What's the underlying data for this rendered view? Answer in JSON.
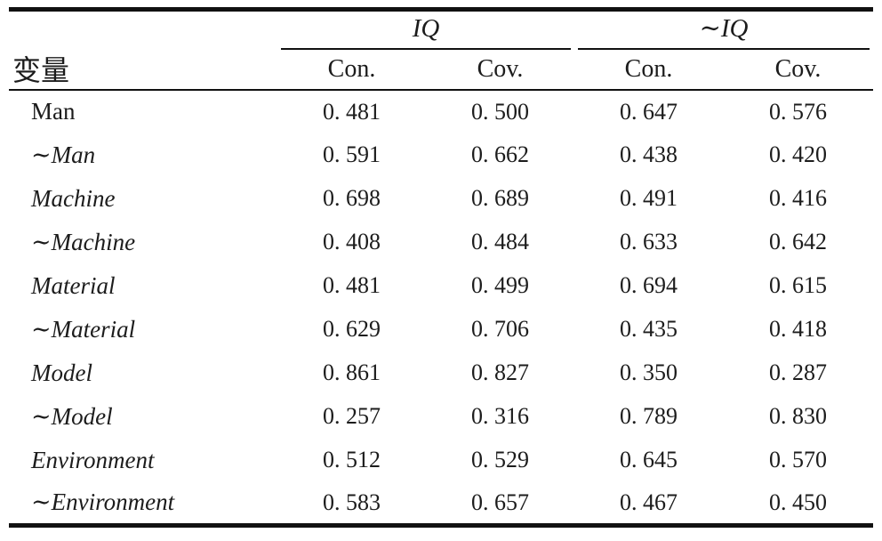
{
  "table": {
    "corner_header": "变量",
    "group_headers": [
      {
        "label": "IQ"
      },
      {
        "label": "∼IQ"
      }
    ],
    "sub_headers": [
      "Con.",
      "Cov.",
      "Con.",
      "Cov."
    ],
    "rows": [
      {
        "label": "Man",
        "italic": false,
        "values": [
          "0. 481",
          "0. 500",
          "0. 647",
          "0. 576"
        ]
      },
      {
        "label": "∼Man",
        "italic": true,
        "values": [
          "0. 591",
          "0. 662",
          "0. 438",
          "0. 420"
        ]
      },
      {
        "label": "Machine",
        "italic": true,
        "values": [
          "0. 698",
          "0. 689",
          "0. 491",
          "0. 416"
        ]
      },
      {
        "label": "∼Machine",
        "italic": true,
        "values": [
          "0. 408",
          "0. 484",
          "0. 633",
          "0. 642"
        ]
      },
      {
        "label": "Material",
        "italic": true,
        "values": [
          "0. 481",
          "0. 499",
          "0. 694",
          "0. 615"
        ]
      },
      {
        "label": "∼Material",
        "italic": true,
        "values": [
          "0. 629",
          "0. 706",
          "0. 435",
          "0. 418"
        ]
      },
      {
        "label": "Model",
        "italic": true,
        "values": [
          "0. 861",
          "0. 827",
          "0. 350",
          "0. 287"
        ]
      },
      {
        "label": "∼Model",
        "italic": true,
        "values": [
          "0. 257",
          "0. 316",
          "0. 789",
          "0. 830"
        ]
      },
      {
        "label": "Environment",
        "italic": true,
        "values": [
          "0. 512",
          "0. 529",
          "0. 645",
          "0. 570"
        ]
      },
      {
        "label": "∼Environment",
        "italic": true,
        "values": [
          "0. 583",
          "0. 657",
          "0. 467",
          "0. 450"
        ]
      }
    ]
  },
  "colors": {
    "text": "#1c1c1c",
    "rule": "#111111",
    "background": "#ffffff"
  }
}
